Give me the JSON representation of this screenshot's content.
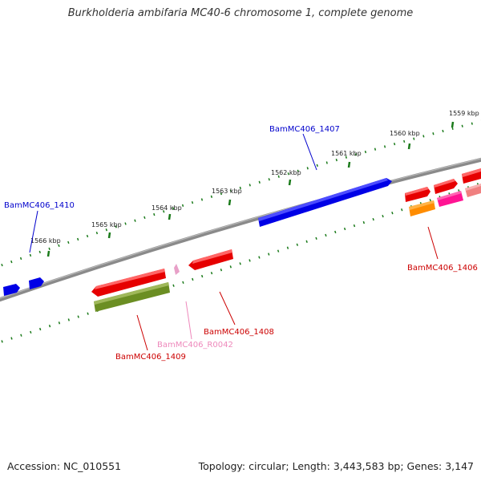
{
  "header": {
    "title": "Burkholderia ambifaria MC40-6 chromosome 1, complete genome"
  },
  "ruler": {
    "ticks": [
      "1559 kbp",
      "1560 kbp",
      "1561 kbp",
      "1562 kbp",
      "1563 kbp",
      "1564 kbp",
      "1565 kbp",
      "1566 kbp"
    ]
  },
  "genes": {
    "g1407": {
      "label": "BamMC406_1407",
      "color": "#0000cc"
    },
    "g1410": {
      "label": "BamMC406_1410",
      "color": "#0000cc"
    },
    "g1406": {
      "label": "BamMC406_1406",
      "color": "#cc0000"
    },
    "g1408": {
      "label": "BamMC406_1408",
      "color": "#cc0000"
    },
    "g1409": {
      "label": "BamMC406_1409",
      "color": "#cc0000"
    },
    "r0042": {
      "label": "BamMC406_R0042",
      "color": "#ee88bb"
    }
  },
  "footer": {
    "accession": "Accession: NC_010551",
    "summary": "Topology: circular; Length: 3,443,583 bp; Genes: 3,147"
  }
}
